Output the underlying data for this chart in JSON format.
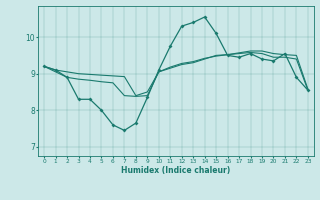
{
  "xlabel": "Humidex (Indice chaleur)",
  "background_color": "#cce8e8",
  "line_color": "#1a7a6e",
  "xlim": [
    -0.5,
    23.5
  ],
  "ylim": [
    6.75,
    10.85
  ],
  "yticks": [
    7,
    8,
    9,
    10
  ],
  "xticks": [
    0,
    1,
    2,
    3,
    4,
    5,
    6,
    7,
    8,
    9,
    10,
    11,
    12,
    13,
    14,
    15,
    16,
    17,
    18,
    19,
    20,
    21,
    22,
    23
  ],
  "series_jagged": [
    9.2,
    9.1,
    8.9,
    8.3,
    8.3,
    8.0,
    7.6,
    7.45,
    7.65,
    8.35,
    9.1,
    9.75,
    10.3,
    10.4,
    10.55,
    10.1,
    9.5,
    9.45,
    9.55,
    9.4,
    9.35,
    9.55,
    8.9,
    8.55
  ],
  "series_mid": [
    9.2,
    9.05,
    8.9,
    8.85,
    8.82,
    8.78,
    8.75,
    8.4,
    8.38,
    8.4,
    9.05,
    9.15,
    9.25,
    9.3,
    9.4,
    9.5,
    9.52,
    9.55,
    9.58,
    9.55,
    9.45,
    9.45,
    9.4,
    8.55
  ],
  "series_smooth": [
    9.2,
    9.1,
    9.05,
    9.0,
    8.98,
    8.96,
    8.94,
    8.92,
    8.4,
    8.5,
    9.05,
    9.18,
    9.28,
    9.33,
    9.42,
    9.48,
    9.52,
    9.57,
    9.62,
    9.62,
    9.55,
    9.52,
    9.5,
    8.58
  ]
}
